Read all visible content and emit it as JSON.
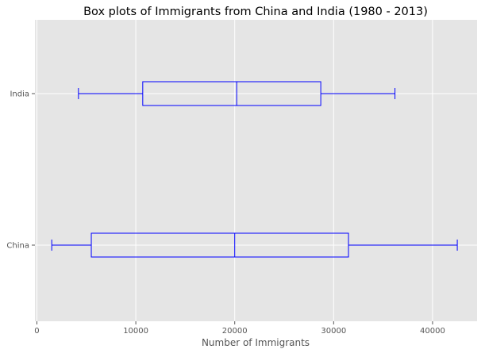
{
  "chart_data": {
    "type": "boxplot",
    "orientation": "horizontal",
    "title": "Box plots of Immigrants from China and India (1980 - 2013)",
    "xlabel": "Number of Immigrants",
    "ylabel": "",
    "xlim": [
      -200,
      44500
    ],
    "xticks": [
      0,
      10000,
      20000,
      30000,
      40000
    ],
    "grid": true,
    "color": "#0000ff",
    "background": "#e5e5e5",
    "categories": [
      "China",
      "India"
    ],
    "boxes": [
      {
        "category": "China",
        "whislo": 1500,
        "q1": 5500,
        "med": 20000,
        "q3": 31500,
        "whishi": 42500
      },
      {
        "category": "India",
        "whislo": 4200,
        "q1": 10700,
        "med": 20200,
        "q3": 28700,
        "whishi": 36200
      }
    ]
  }
}
